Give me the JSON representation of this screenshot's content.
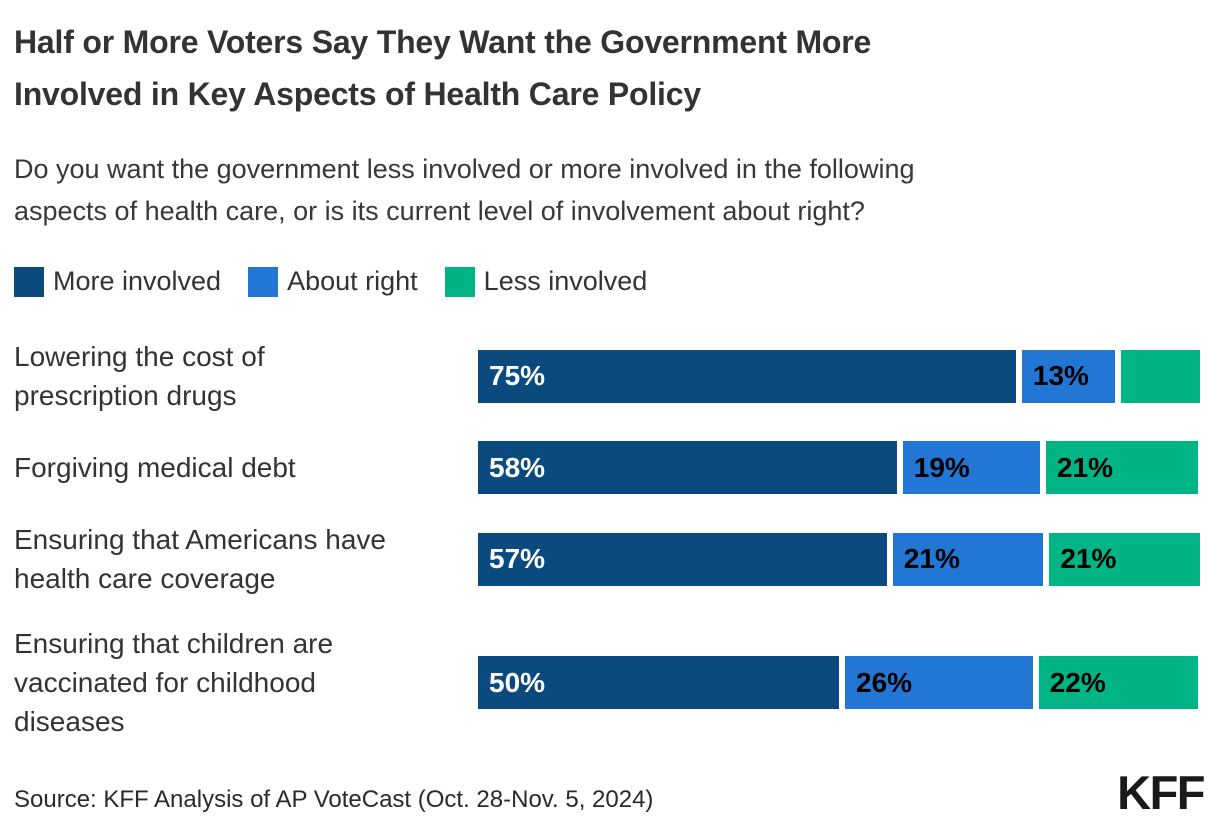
{
  "header": {
    "title": "Half or More Voters Say They Want the Government More\nInvolved in Key Aspects of Health Care Policy",
    "subtitle": "Do you want the government less involved or more involved in the following\naspects of health care, or is its current level of involvement about right?"
  },
  "legend": {
    "items": [
      {
        "label": "More involved",
        "color": "#0b4a7e"
      },
      {
        "label": "About right",
        "color": "#2277d4"
      },
      {
        "label": "Less involved",
        "color": "#00b486"
      }
    ]
  },
  "chart_data": {
    "type": "bar",
    "orientation": "horizontal-stacked",
    "title": "Half or More Voters Say They Want the Government More Involved in Key Aspects of Health Care Policy",
    "subtitle": "Do you want the government less involved or more involved in the following aspects of health care, or is its current level of involvement about right?",
    "xlim": [
      0,
      100
    ],
    "grid": false,
    "legend_position": "top",
    "categories": [
      "Lowering the cost of prescription drugs",
      "Forgiving medical debt",
      "Ensuring that Americans have health care coverage",
      "Ensuring that children are vaccinated for childhood diseases"
    ],
    "category_display": [
      "Lowering the cost of\nprescription drugs",
      "Forgiving medical debt",
      "Ensuring that Americans have\nhealth care coverage",
      "Ensuring that children are\nvaccinated for childhood\ndiseases"
    ],
    "series": [
      {
        "name": "More involved",
        "color": "#0b4a7e",
        "values": [
          75,
          58,
          57,
          50
        ],
        "labels": [
          "75%",
          "58%",
          "57%",
          "50%"
        ]
      },
      {
        "name": "About right",
        "color": "#2277d4",
        "values": [
          13,
          19,
          21,
          26
        ],
        "labels": [
          "13%",
          "19%",
          "21%",
          "26%"
        ]
      },
      {
        "name": "Less involved",
        "color": "#00b486",
        "values": [
          11,
          21,
          21,
          22
        ],
        "labels": [
          "",
          "21%",
          "21%",
          "22%"
        ]
      }
    ]
  },
  "footer": {
    "source": "Source: KFF Analysis of AP VoteCast (Oct. 28-Nov. 5, 2024)",
    "logo": "KFF"
  }
}
